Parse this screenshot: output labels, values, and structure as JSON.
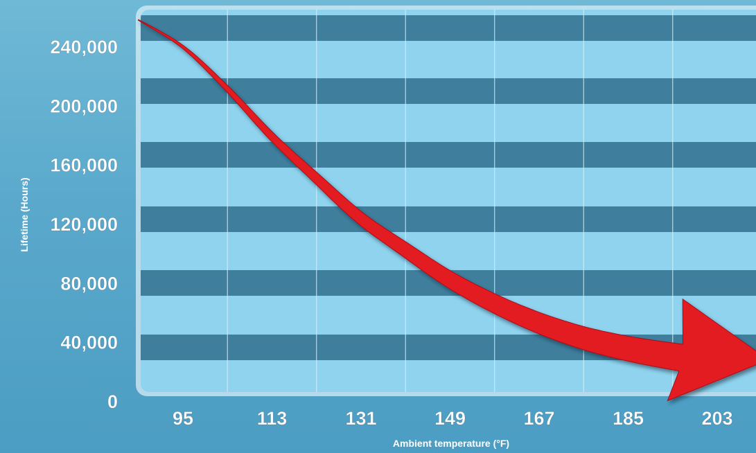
{
  "chart_data": {
    "type": "line",
    "xlabel": "Ambient temperature (°F)",
    "ylabel": "Lifetime  (Hours)",
    "x_ticks": [
      95,
      113,
      131,
      149,
      167,
      185,
      203
    ],
    "y_ticks": [
      0,
      40000,
      80000,
      120000,
      160000,
      200000,
      240000
    ],
    "y_tick_labels": [
      "0",
      "40,000",
      "80,000",
      "120,000",
      "160,000",
      "200,000",
      "240,000"
    ],
    "ylim": [
      0,
      260000
    ],
    "xlim": [
      86,
      212
    ],
    "grid": true,
    "series": [
      {
        "x": [
          86,
          95,
          104,
          113,
          122,
          131,
          140,
          149,
          158,
          167,
          176,
          185,
          194,
          203,
          212
        ],
        "y": [
          258000,
          240000,
          212000,
          180000,
          152000,
          125000,
          104000,
          84000,
          68000,
          55000,
          45000,
          38000,
          33000,
          29000,
          27000
        ]
      }
    ],
    "colors": {
      "band_dark": "#3f7f9d",
      "band_light": "#8fd3ee",
      "arrow": "#e31b23",
      "text": "#ffffff"
    }
  }
}
